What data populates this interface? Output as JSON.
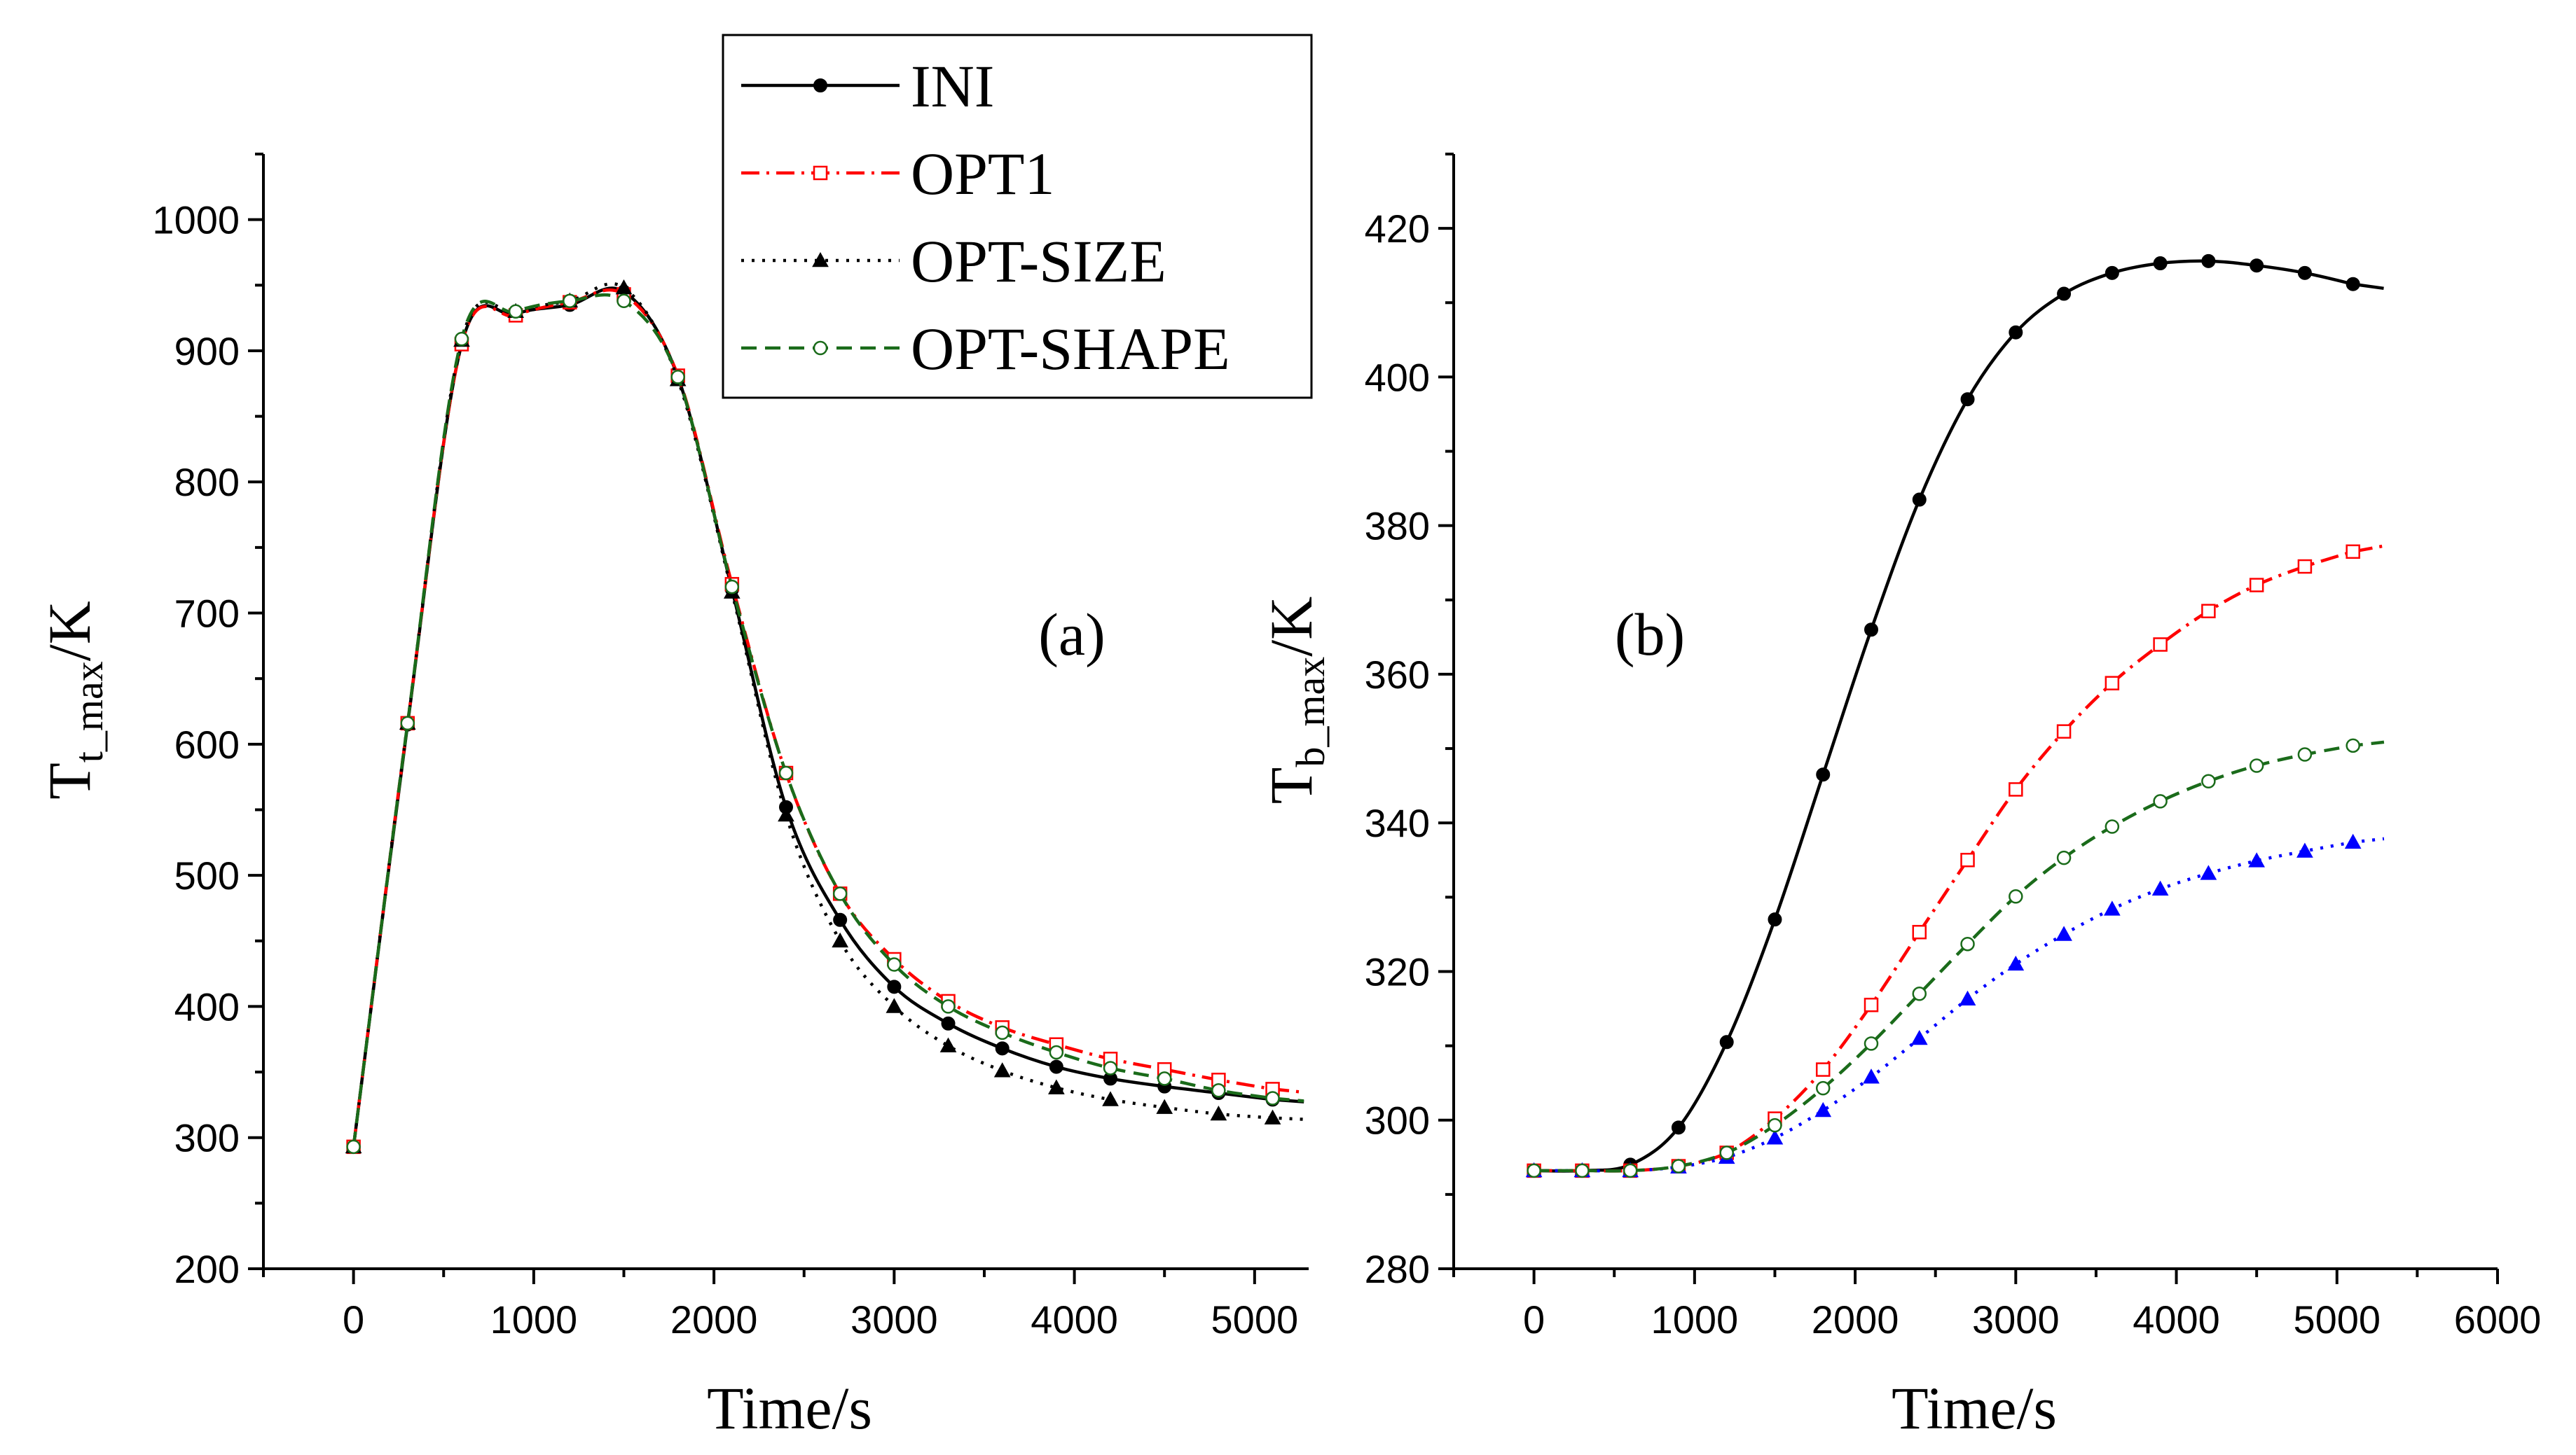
{
  "chart_data": [
    {
      "panel": "(a)",
      "type": "line",
      "xlabel": "Time/s",
      "ylabel_main": "T",
      "ylabel_sub": "t_max",
      "ylabel_tail": "/K",
      "xlim": [
        -500,
        5300
      ],
      "ylim": [
        200,
        1050
      ],
      "xticks": [
        0,
        1000,
        2000,
        3000,
        4000,
        5000
      ],
      "yticks": [
        200,
        300,
        400,
        500,
        600,
        700,
        800,
        900,
        1000
      ],
      "x": [
        0,
        300,
        600,
        900,
        1200,
        1500,
        1800,
        2100,
        2400,
        2700,
        3000,
        3300,
        3600,
        3900,
        4200,
        4500,
        4800,
        5100
      ],
      "series": [
        {
          "name": "INI",
          "color": "#000000",
          "values": [
            293,
            615,
            905,
            928,
            935,
            945,
            880,
            718,
            552,
            466,
            415,
            387,
            368,
            354,
            345,
            339,
            334,
            329
          ]
        },
        {
          "name": "OPT1",
          "color": "#ff0000",
          "values": [
            293,
            616,
            905,
            927,
            937,
            943,
            881,
            722,
            578,
            486,
            436,
            404,
            384,
            371,
            360,
            352,
            344,
            337
          ]
        },
        {
          "name": "OPT-SIZE",
          "color": "#000000",
          "values": [
            293,
            616,
            908,
            930,
            938,
            948,
            878,
            716,
            546,
            450,
            400,
            370,
            351,
            338,
            329,
            323,
            318,
            315
          ]
        },
        {
          "name": "OPT-SHAPE",
          "color": "#1a6b1a",
          "values": [
            293,
            616,
            909,
            930,
            938,
            938,
            880,
            720,
            578,
            486,
            432,
            400,
            380,
            365,
            353,
            345,
            336,
            330
          ]
        }
      ]
    },
    {
      "panel": "(b)",
      "type": "line",
      "xlabel": "Time/s",
      "ylabel_main": "T",
      "ylabel_sub": "b_max",
      "ylabel_tail": "/K",
      "xlim": [
        -500,
        6000
      ],
      "ylim": [
        280,
        430
      ],
      "xticks": [
        0,
        1000,
        2000,
        3000,
        4000,
        5000,
        6000
      ],
      "yticks": [
        280,
        300,
        320,
        340,
        360,
        380,
        400,
        420
      ],
      "x": [
        0,
        300,
        600,
        900,
        1200,
        1500,
        1800,
        2100,
        2400,
        2700,
        3000,
        3300,
        3600,
        3900,
        4200,
        4500,
        4800,
        5100
      ],
      "series": [
        {
          "name": "INI",
          "color": "#000000",
          "values": [
            293.2,
            293.2,
            294.0,
            299.0,
            310.5,
            327.0,
            346.5,
            366.0,
            383.5,
            397.0,
            406.0,
            411.2,
            414.0,
            415.3,
            415.6,
            415.0,
            414.0,
            412.5
          ]
        },
        {
          "name": "OPT1",
          "color": "#ff0000",
          "values": [
            293.2,
            293.2,
            293.2,
            293.8,
            295.6,
            300.2,
            306.8,
            315.5,
            325.3,
            335.0,
            344.5,
            352.3,
            358.8,
            364.0,
            368.5,
            372.0,
            374.5,
            376.5
          ]
        },
        {
          "name": "OPT-SIZE",
          "color": "#0000ff",
          "values": [
            293.2,
            293.2,
            293.2,
            293.7,
            295.0,
            297.6,
            301.3,
            305.8,
            311.0,
            316.3,
            321.0,
            325.0,
            328.4,
            331.1,
            333.2,
            334.9,
            336.2,
            337.4
          ]
        },
        {
          "name": "OPT-SHAPE",
          "color": "#1a6b1a",
          "values": [
            293.2,
            293.2,
            293.2,
            293.8,
            295.6,
            299.3,
            304.3,
            310.3,
            317.0,
            323.7,
            330.1,
            335.3,
            339.5,
            342.9,
            345.6,
            347.7,
            349.2,
            350.4
          ]
        }
      ]
    }
  ],
  "legend": {
    "items": [
      {
        "name": "INI",
        "color": "#000000",
        "style": "solid",
        "marker": "filled-circle"
      },
      {
        "name": "OPT1",
        "color": "#ff0000",
        "style": "dash-dot",
        "marker": "open-square"
      },
      {
        "name": "OPT-SIZE",
        "color": "#000000",
        "style": "dotted",
        "marker": "filled-triangle"
      },
      {
        "name": "OPT-SHAPE",
        "color": "#1a6b1a",
        "style": "dashed",
        "marker": "open-circle"
      }
    ]
  }
}
